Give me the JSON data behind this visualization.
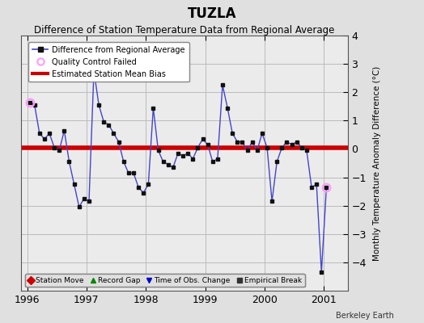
{
  "title": "TUZLA",
  "subtitle": "Difference of Station Temperature Data from Regional Average",
  "ylabel": "Monthly Temperature Anomaly Difference (°C)",
  "xlabel_note": "Berkeley Earth",
  "xlim": [
    1995.9,
    2001.4
  ],
  "ylim": [
    -5,
    4
  ],
  "yticks": [
    -4,
    -3,
    -2,
    -1,
    0,
    1,
    2,
    3,
    4
  ],
  "xticks": [
    1996,
    1997,
    1998,
    1999,
    2000,
    2001
  ],
  "bias_value": 0.05,
  "background_color": "#e0e0e0",
  "plot_bg_color": "#ebebeb",
  "line_color": "#4444cc",
  "marker_color": "#111111",
  "bias_color": "#cc0000",
  "qc_fail_color": "#ff99ff",
  "time_series": [
    [
      1996.042,
      1.65
    ],
    [
      1996.125,
      1.55
    ],
    [
      1996.208,
      0.55
    ],
    [
      1996.292,
      0.35
    ],
    [
      1996.375,
      0.55
    ],
    [
      1996.458,
      0.05
    ],
    [
      1996.542,
      -0.05
    ],
    [
      1996.625,
      0.65
    ],
    [
      1996.708,
      -0.45
    ],
    [
      1996.792,
      -1.25
    ],
    [
      1996.875,
      -2.05
    ],
    [
      1996.958,
      -1.75
    ],
    [
      1997.042,
      -1.85
    ],
    [
      1997.125,
      2.75
    ],
    [
      1997.208,
      1.55
    ],
    [
      1997.292,
      0.95
    ],
    [
      1997.375,
      0.85
    ],
    [
      1997.458,
      0.55
    ],
    [
      1997.542,
      0.25
    ],
    [
      1997.625,
      -0.45
    ],
    [
      1997.708,
      -0.85
    ],
    [
      1997.792,
      -0.85
    ],
    [
      1997.875,
      -1.35
    ],
    [
      1997.958,
      -1.55
    ],
    [
      1998.042,
      -1.25
    ],
    [
      1998.125,
      1.45
    ],
    [
      1998.208,
      -0.05
    ],
    [
      1998.292,
      -0.45
    ],
    [
      1998.375,
      -0.55
    ],
    [
      1998.458,
      -0.65
    ],
    [
      1998.542,
      -0.15
    ],
    [
      1998.625,
      -0.25
    ],
    [
      1998.708,
      -0.15
    ],
    [
      1998.792,
      -0.35
    ],
    [
      1998.875,
      0.05
    ],
    [
      1998.958,
      0.35
    ],
    [
      1999.042,
      0.15
    ],
    [
      1999.125,
      -0.45
    ],
    [
      1999.208,
      -0.35
    ],
    [
      1999.292,
      2.25
    ],
    [
      1999.375,
      1.45
    ],
    [
      1999.458,
      0.55
    ],
    [
      1999.542,
      0.25
    ],
    [
      1999.625,
      0.25
    ],
    [
      1999.708,
      -0.05
    ],
    [
      1999.792,
      0.25
    ],
    [
      1999.875,
      -0.05
    ],
    [
      1999.958,
      0.55
    ],
    [
      2000.042,
      0.05
    ],
    [
      2000.125,
      -1.85
    ],
    [
      2000.208,
      -0.45
    ],
    [
      2000.292,
      0.05
    ],
    [
      2000.375,
      0.25
    ],
    [
      2000.458,
      0.15
    ],
    [
      2000.542,
      0.25
    ],
    [
      2000.625,
      0.05
    ],
    [
      2000.708,
      -0.05
    ],
    [
      2000.792,
      -1.35
    ],
    [
      2000.875,
      -1.25
    ],
    [
      2000.958,
      -4.35
    ],
    [
      2001.042,
      -1.35
    ]
  ],
  "qc_fail_points": [
    [
      1996.042,
      1.65
    ],
    [
      2001.042,
      -1.35
    ]
  ],
  "title_fontsize": 12,
  "subtitle_fontsize": 8.5,
  "axis_fontsize": 9,
  "ylabel_fontsize": 7.5
}
